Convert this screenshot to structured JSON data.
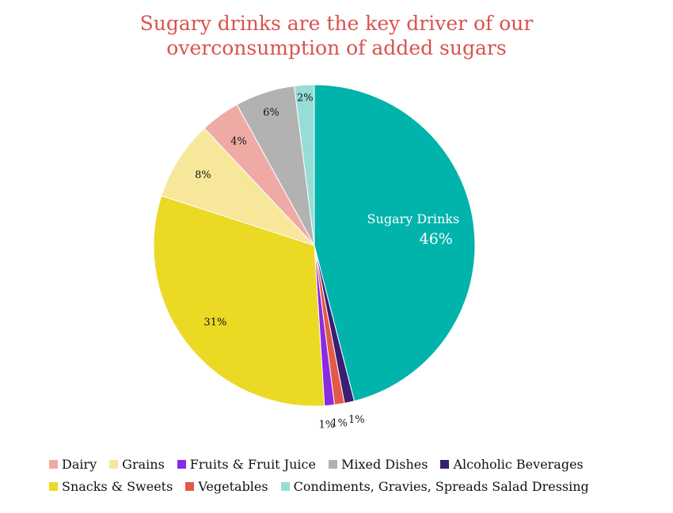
{
  "title_lines": [
    "Sugary drinks are the key driver of our",
    "overconsumption of added sugars"
  ],
  "chart_data": {
    "type": "pie",
    "title": "Sugary drinks are the key driver of our overconsumption of added sugars",
    "slices": [
      {
        "name": "Sugary Drinks",
        "value": 46,
        "label": "46%",
        "color": "#00b3ab"
      },
      {
        "name": "Alcoholic Beverages",
        "value": 1,
        "label": "1%",
        "color": "#3a1f73"
      },
      {
        "name": "Vegetables",
        "value": 1,
        "label": "1%",
        "color": "#e35a47"
      },
      {
        "name": "Fruits & Fruit Juice",
        "value": 1,
        "label": "1%",
        "color": "#8a2be2"
      },
      {
        "name": "Snacks & Sweets",
        "value": 31,
        "label": "31%",
        "color": "#ecd924"
      },
      {
        "name": "Grains",
        "value": 8,
        "label": "8%",
        "color": "#f7e79a"
      },
      {
        "name": "Dairy",
        "value": 4,
        "label": "4%",
        "color": "#f0aaa6"
      },
      {
        "name": "Mixed Dishes",
        "value": 6,
        "label": "6%",
        "color": "#b2b2b2"
      },
      {
        "name": "Condiments, Gravies, Spreads Salad Dressing",
        "value": 2,
        "label": "2%",
        "color": "#98dcd7"
      }
    ],
    "start_angle_deg": 0,
    "direction": "clockwise",
    "legend_position": "bottom"
  },
  "legend_rows": [
    [
      "Dairy",
      "Grains",
      "Fruits & Fruit Juice",
      "Mixed Dishes",
      "Alcoholic Beverages"
    ],
    [
      "Snacks & Sweets",
      "Vegetables",
      "Condiments, Gravies, Spreads Salad Dressing"
    ]
  ]
}
